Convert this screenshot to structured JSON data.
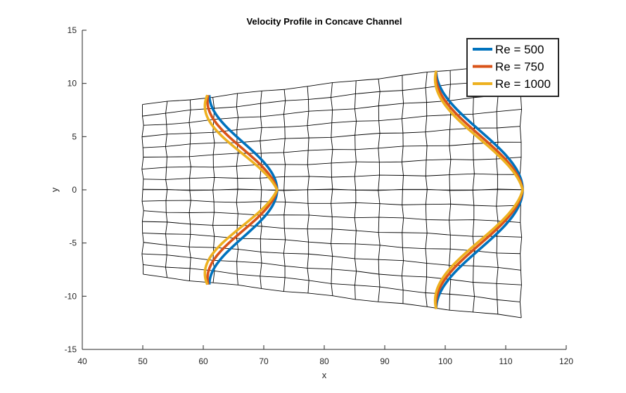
{
  "chart_data": {
    "type": "line",
    "title": "Velocity Profile in Concave Channel",
    "xlabel": "x",
    "ylabel": "y",
    "xlim": [
      40,
      120
    ],
    "ylim": [
      -15,
      15
    ],
    "xticks": [
      40,
      50,
      60,
      70,
      80,
      90,
      100,
      110,
      120
    ],
    "yticks": [
      -15,
      -10,
      -5,
      0,
      5,
      10,
      15
    ],
    "xtick_labels": [
      "40",
      "50",
      "60",
      "70",
      "80",
      "90",
      "100",
      "110",
      "120"
    ],
    "ytick_labels": [
      "-15",
      "-10",
      "-5",
      "0",
      "5",
      "10",
      "15"
    ],
    "grid": false,
    "legend_position": "top-right",
    "channel_mesh": {
      "x_start": 50,
      "x_end": 112.5,
      "half_height_start": 8,
      "half_height_end": 12,
      "x_divisions": 16,
      "y_divisions": 16,
      "color": "#000000"
    },
    "profile_stations": [
      {
        "x_base": 61.0,
        "half_height": 8.9
      },
      {
        "x_base": 98.5,
        "half_height": 11.2
      }
    ],
    "series": [
      {
        "name": "Re = 500",
        "color": "#0072BD",
        "centerline_velocity_x": [
          72.2,
          112.8
        ],
        "wall_velocity_x": [
          61.0,
          98.5
        ]
      },
      {
        "name": "Re = 750",
        "color": "#D95319",
        "centerline_velocity_x": [
          72.2,
          112.8
        ],
        "wall_velocity_x": [
          61.0,
          98.5
        ]
      },
      {
        "name": "Re = 1000",
        "color": "#EDB120",
        "centerline_velocity_x": [
          72.2,
          112.8
        ],
        "wall_velocity_x": [
          61.0,
          98.5
        ]
      }
    ]
  }
}
